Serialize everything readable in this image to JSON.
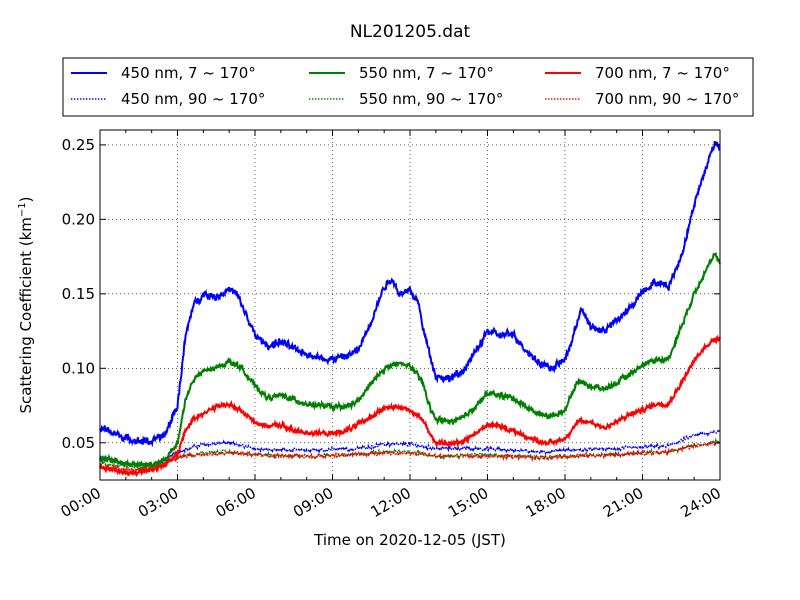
{
  "chart_data": {
    "type": "line",
    "title": "NL201205.dat",
    "xlabel": "Time on 2020-12-05 (JST)",
    "ylabel_main": "Scattering Coefficient (km",
    "ylabel_sup": "−1",
    "ylabel_close": ")",
    "xlim": [
      0,
      24
    ],
    "ylim": [
      0.025,
      0.26
    ],
    "x_ticks": [
      {
        "value": 0,
        "label": "00:00"
      },
      {
        "value": 3,
        "label": "03:00"
      },
      {
        "value": 6,
        "label": "06:00"
      },
      {
        "value": 9,
        "label": "09:00"
      },
      {
        "value": 12,
        "label": "12:00"
      },
      {
        "value": 15,
        "label": "15:00"
      },
      {
        "value": 18,
        "label": "18:00"
      },
      {
        "value": 21,
        "label": "21:00"
      },
      {
        "value": 24,
        "label": "24:00"
      }
    ],
    "y_ticks": [
      {
        "value": 0.05,
        "label": "0.05"
      },
      {
        "value": 0.1,
        "label": "0.10"
      },
      {
        "value": 0.15,
        "label": "0.15"
      },
      {
        "value": 0.2,
        "label": "0.20"
      },
      {
        "value": 0.25,
        "label": "0.25"
      }
    ],
    "grid": true,
    "legend_placement": "above plot, 3 columns",
    "series": [
      {
        "name": "450 nm, 7 ~ 170°",
        "color": "#0000ff",
        "style": "solid",
        "noise": 0.0035,
        "points": [
          [
            0,
            0.06
          ],
          [
            0.5,
            0.057
          ],
          [
            1,
            0.053
          ],
          [
            1.5,
            0.051
          ],
          [
            2,
            0.051
          ],
          [
            2.5,
            0.055
          ],
          [
            3,
            0.075
          ],
          [
            3.3,
            0.12
          ],
          [
            3.6,
            0.142
          ],
          [
            4,
            0.15
          ],
          [
            4.5,
            0.148
          ],
          [
            5,
            0.153
          ],
          [
            5.3,
            0.15
          ],
          [
            5.6,
            0.138
          ],
          [
            6,
            0.122
          ],
          [
            6.5,
            0.115
          ],
          [
            7,
            0.118
          ],
          [
            7.5,
            0.113
          ],
          [
            8,
            0.11
          ],
          [
            8.5,
            0.107
          ],
          [
            9,
            0.106
          ],
          [
            9.5,
            0.108
          ],
          [
            10,
            0.112
          ],
          [
            10.5,
            0.132
          ],
          [
            11,
            0.155
          ],
          [
            11.3,
            0.16
          ],
          [
            11.6,
            0.15
          ],
          [
            12,
            0.152
          ],
          [
            12.3,
            0.145
          ],
          [
            12.6,
            0.12
          ],
          [
            13,
            0.095
          ],
          [
            13.5,
            0.093
          ],
          [
            14,
            0.097
          ],
          [
            14.5,
            0.11
          ],
          [
            15,
            0.125
          ],
          [
            15.5,
            0.122
          ],
          [
            16,
            0.123
          ],
          [
            16.5,
            0.112
          ],
          [
            17,
            0.104
          ],
          [
            17.5,
            0.1
          ],
          [
            18,
            0.106
          ],
          [
            18.3,
            0.12
          ],
          [
            18.6,
            0.14
          ],
          [
            19,
            0.128
          ],
          [
            19.5,
            0.125
          ],
          [
            20,
            0.132
          ],
          [
            20.5,
            0.14
          ],
          [
            21,
            0.152
          ],
          [
            21.5,
            0.158
          ],
          [
            22,
            0.155
          ],
          [
            22.5,
            0.175
          ],
          [
            23,
            0.21
          ],
          [
            23.5,
            0.237
          ],
          [
            23.8,
            0.252
          ],
          [
            24,
            0.248
          ]
        ]
      },
      {
        "name": "450 nm, 90 ~ 170°",
        "color": "#0000ff",
        "style": "dotted",
        "noise": 0.0015,
        "points": [
          [
            0,
            0.04
          ],
          [
            1,
            0.036
          ],
          [
            2,
            0.035
          ],
          [
            2.5,
            0.038
          ],
          [
            3,
            0.044
          ],
          [
            4,
            0.049
          ],
          [
            5,
            0.05
          ],
          [
            6,
            0.046
          ],
          [
            8,
            0.045
          ],
          [
            10,
            0.046
          ],
          [
            11,
            0.049
          ],
          [
            12,
            0.049
          ],
          [
            13,
            0.046
          ],
          [
            15,
            0.046
          ],
          [
            17,
            0.044
          ],
          [
            18,
            0.045
          ],
          [
            20,
            0.046
          ],
          [
            21,
            0.047
          ],
          [
            22,
            0.048
          ],
          [
            23,
            0.055
          ],
          [
            24,
            0.058
          ]
        ]
      },
      {
        "name": "550 nm, 7 ~ 170°",
        "color": "#008000",
        "style": "solid",
        "noise": 0.0025,
        "points": [
          [
            0,
            0.04
          ],
          [
            0.5,
            0.038
          ],
          [
            1,
            0.036
          ],
          [
            2,
            0.035
          ],
          [
            2.5,
            0.038
          ],
          [
            3,
            0.05
          ],
          [
            3.3,
            0.078
          ],
          [
            3.6,
            0.092
          ],
          [
            4,
            0.098
          ],
          [
            4.5,
            0.1
          ],
          [
            5,
            0.105
          ],
          [
            5.5,
            0.1
          ],
          [
            6,
            0.088
          ],
          [
            6.5,
            0.08
          ],
          [
            7,
            0.082
          ],
          [
            7.5,
            0.079
          ],
          [
            8,
            0.076
          ],
          [
            9,
            0.074
          ],
          [
            9.5,
            0.074
          ],
          [
            10,
            0.078
          ],
          [
            10.5,
            0.09
          ],
          [
            11,
            0.1
          ],
          [
            11.5,
            0.103
          ],
          [
            12,
            0.102
          ],
          [
            12.5,
            0.09
          ],
          [
            12.8,
            0.072
          ],
          [
            13,
            0.066
          ],
          [
            13.5,
            0.064
          ],
          [
            14,
            0.066
          ],
          [
            14.5,
            0.074
          ],
          [
            15,
            0.083
          ],
          [
            15.5,
            0.082
          ],
          [
            16,
            0.08
          ],
          [
            16.5,
            0.074
          ],
          [
            17,
            0.069
          ],
          [
            17.5,
            0.068
          ],
          [
            18,
            0.072
          ],
          [
            18.5,
            0.092
          ],
          [
            19,
            0.088
          ],
          [
            19.5,
            0.086
          ],
          [
            20,
            0.09
          ],
          [
            20.5,
            0.096
          ],
          [
            21,
            0.102
          ],
          [
            21.5,
            0.106
          ],
          [
            22,
            0.106
          ],
          [
            22.5,
            0.128
          ],
          [
            23,
            0.15
          ],
          [
            23.5,
            0.168
          ],
          [
            23.8,
            0.176
          ],
          [
            24,
            0.17
          ]
        ]
      },
      {
        "name": "550 nm, 90 ~ 170°",
        "color": "#008000",
        "style": "dotted",
        "noise": 0.0015,
        "points": [
          [
            0,
            0.036
          ],
          [
            1,
            0.034
          ],
          [
            2,
            0.033
          ],
          [
            3,
            0.04
          ],
          [
            4,
            0.043
          ],
          [
            5,
            0.044
          ],
          [
            6,
            0.042
          ],
          [
            8,
            0.041
          ],
          [
            10,
            0.042
          ],
          [
            11,
            0.044
          ],
          [
            12,
            0.044
          ],
          [
            13,
            0.041
          ],
          [
            15,
            0.042
          ],
          [
            17,
            0.04
          ],
          [
            18,
            0.041
          ],
          [
            20,
            0.042
          ],
          [
            21,
            0.043
          ],
          [
            22,
            0.044
          ],
          [
            23,
            0.048
          ],
          [
            24,
            0.051
          ]
        ]
      },
      {
        "name": "700 nm, 7 ~ 170°",
        "color": "#ff0000",
        "style": "solid",
        "noise": 0.0022,
        "points": [
          [
            0,
            0.034
          ],
          [
            0.5,
            0.032
          ],
          [
            1,
            0.03
          ],
          [
            1.5,
            0.03
          ],
          [
            2,
            0.032
          ],
          [
            2.5,
            0.035
          ],
          [
            3,
            0.042
          ],
          [
            3.3,
            0.058
          ],
          [
            3.6,
            0.066
          ],
          [
            4,
            0.07
          ],
          [
            4.5,
            0.074
          ],
          [
            5,
            0.076
          ],
          [
            5.5,
            0.071
          ],
          [
            6,
            0.064
          ],
          [
            6.5,
            0.061
          ],
          [
            7,
            0.062
          ],
          [
            7.5,
            0.058
          ],
          [
            8,
            0.057
          ],
          [
            9,
            0.056
          ],
          [
            9.5,
            0.058
          ],
          [
            10,
            0.062
          ],
          [
            10.5,
            0.068
          ],
          [
            11,
            0.073
          ],
          [
            11.5,
            0.074
          ],
          [
            12,
            0.072
          ],
          [
            12.5,
            0.066
          ],
          [
            12.8,
            0.055
          ],
          [
            13,
            0.05
          ],
          [
            13.5,
            0.049
          ],
          [
            14,
            0.051
          ],
          [
            14.5,
            0.056
          ],
          [
            15,
            0.062
          ],
          [
            15.5,
            0.061
          ],
          [
            16,
            0.058
          ],
          [
            16.5,
            0.054
          ],
          [
            17,
            0.051
          ],
          [
            17.5,
            0.05
          ],
          [
            18,
            0.053
          ],
          [
            18.5,
            0.064
          ],
          [
            19,
            0.064
          ],
          [
            19.5,
            0.06
          ],
          [
            20,
            0.064
          ],
          [
            20.5,
            0.069
          ],
          [
            21,
            0.072
          ],
          [
            21.5,
            0.076
          ],
          [
            22,
            0.076
          ],
          [
            22.5,
            0.09
          ],
          [
            23,
            0.105
          ],
          [
            23.5,
            0.116
          ],
          [
            24,
            0.121
          ]
        ]
      },
      {
        "name": "700 nm, 90 ~ 170°",
        "color": "#ff0000",
        "style": "dotted",
        "noise": 0.0015,
        "points": [
          [
            0,
            0.033
          ],
          [
            1,
            0.032
          ],
          [
            2,
            0.032
          ],
          [
            3,
            0.04
          ],
          [
            4,
            0.042
          ],
          [
            5,
            0.043
          ],
          [
            6,
            0.042
          ],
          [
            8,
            0.041
          ],
          [
            10,
            0.042
          ],
          [
            11,
            0.043
          ],
          [
            12,
            0.043
          ],
          [
            13,
            0.041
          ],
          [
            15,
            0.041
          ],
          [
            17,
            0.04
          ],
          [
            18,
            0.041
          ],
          [
            20,
            0.042
          ],
          [
            21,
            0.043
          ],
          [
            22,
            0.044
          ],
          [
            23,
            0.048
          ],
          [
            24,
            0.05
          ]
        ]
      }
    ]
  }
}
